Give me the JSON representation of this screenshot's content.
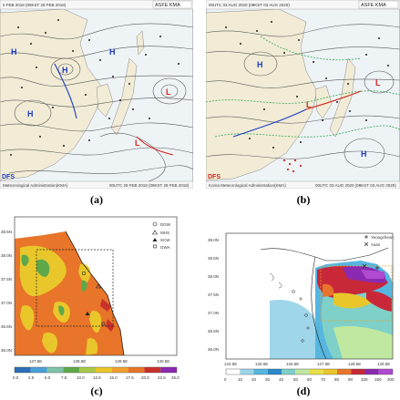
{
  "panel_a": {
    "label": "(a)",
    "header_date": "0 FEB 2018 (09KST 28 FEB 2018)",
    "header_agency": "ASFE KMA",
    "footer_agency": "Meteorological Administration(KMA)",
    "footer_date": "00UTC 28 FEB 2018 (09KST 28 FEB 2018)",
    "logo": "DFS",
    "pressure_labels": [
      "H",
      "H",
      "H",
      "L",
      "L",
      "H"
    ]
  },
  "panel_b": {
    "label": "(b)",
    "header_date": "00UTC 03 AUG 2020 (09KST 03 AUG 2020)",
    "header_agency": "ASFE KMA",
    "footer_agency": "Korea Meteorological Administration(KMA)",
    "footer_date": "00UTC 03 AUG 2020 (09KST 03 AUG 2020)",
    "logo": "DFS",
    "pressure_labels": [
      "H",
      "L",
      "H",
      "L"
    ]
  },
  "panel_c": {
    "label": "(c)",
    "y_ticks": [
      "38.5N",
      "38.0N",
      "37.5N",
      "37.0N",
      "36.5N",
      "36.0N"
    ],
    "x_ticks": [
      "127.5E",
      "128.5E",
      "129.5E",
      "130.5E"
    ],
    "colorbar_ticks": [
      "0.0",
      "2.5",
      "5.0",
      "7.5",
      "10.0",
      "12.5",
      "15.0",
      "17.5",
      "20.0",
      "22.5",
      "25.0"
    ],
    "legend": [
      {
        "symbol": "circle",
        "text": "DGW"
      },
      {
        "symbol": "triangle-open",
        "text": "MHS"
      },
      {
        "symbol": "triangle-filled",
        "text": "SCW"
      },
      {
        "symbol": "square",
        "text": "GWA"
      }
    ]
  },
  "panel_d": {
    "label": "(d)",
    "y_ticks": [
      "39.0N",
      "38.5N",
      "38.0N",
      "37.5N",
      "37.0N",
      "36.5N",
      "36.0N"
    ],
    "x_ticks": [
      "124.5E",
      "125.5E",
      "126.5E",
      "127.5E",
      "128.5E",
      "129.5E"
    ],
    "colorbar_ticks": [
      "0",
      "10",
      "20",
      "30",
      "40",
      "50",
      "60",
      "70",
      "80",
      "90",
      "100",
      "150",
      "300"
    ],
    "legend": [
      {
        "symbol": "plus",
        "text": "Yeongcheon"
      },
      {
        "symbol": "cross",
        "text": "Asan"
      }
    ]
  },
  "colors": {
    "chart_land": "#f2ecd6",
    "chart_sea": "#eef3f6",
    "isobar": "#5a5a5a",
    "front_blue": "#1a3cc8",
    "front_red": "#d2281e",
    "green_line": "#2fa84f"
  }
}
